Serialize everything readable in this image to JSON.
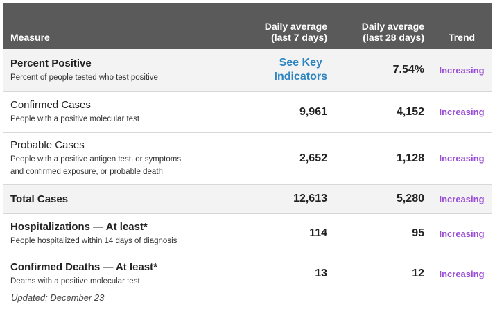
{
  "header": {
    "measure": "Measure",
    "daily7_line1": "Daily average",
    "daily7_line2": "(last 7 days)",
    "daily28_line1": "Daily average",
    "daily28_line2": "(last 28 days)",
    "trend": "Trend"
  },
  "rows": [
    {
      "title": "Percent Positive",
      "desc": "Percent of people tested who test positive",
      "d7": "",
      "d7_link1": "See Key",
      "d7_link2": "Indicators",
      "d28": "7.54%",
      "trend": "Increasing"
    },
    {
      "title": "Confirmed Cases",
      "desc": "People with a positive molecular test",
      "d7": "9,961",
      "d28": "4,152",
      "trend": "Increasing"
    },
    {
      "title": "Probable Cases",
      "desc1": "People with a positive antigen test, or symptoms",
      "desc2": "and confirmed exposure, or probable death",
      "d7": "2,652",
      "d28": "1,128",
      "trend": "Increasing"
    },
    {
      "title": "Total Cases",
      "d7": "12,613",
      "d28": "5,280",
      "trend": "Increasing"
    },
    {
      "title": "Hospitalizations — At least*",
      "desc": "People hospitalized within 14 days of diagnosis",
      "d7": "114",
      "d28": "95",
      "trend": "Increasing"
    },
    {
      "title": "Confirmed Deaths — At least*",
      "desc": "Deaths with a positive molecular test",
      "d7": "13",
      "d28": "12",
      "trend": "Increasing"
    }
  ],
  "footer": {
    "updated": "Updated: December 23"
  },
  "colors": {
    "header_bg": "#5a5a5a",
    "trend": "#9b4fd6",
    "link": "#2e86c1",
    "shaded_row": "#f3f3f3"
  }
}
